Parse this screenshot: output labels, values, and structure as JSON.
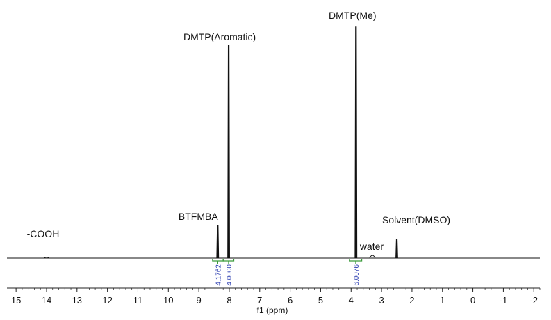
{
  "chart_data": {
    "type": "line",
    "title": "",
    "xlabel": "f1 (ppm)",
    "ylabel": "",
    "xlim": [
      15.3,
      -2.2
    ],
    "x_reversed": true,
    "ticks": [
      "15",
      "14",
      "13",
      "12",
      "11",
      "10",
      "9",
      "8",
      "7",
      "6",
      "5",
      "4",
      "3",
      "2",
      "1",
      "0",
      "-1",
      "-2"
    ],
    "tick_values": [
      15,
      14,
      13,
      12,
      11,
      10,
      9,
      8,
      7,
      6,
      5,
      4,
      3,
      2,
      1,
      0,
      -1,
      -2
    ],
    "peaks": [
      {
        "shift": 14.0,
        "height": 0.004,
        "label": "-COOH"
      },
      {
        "shift": 8.38,
        "height": 0.14,
        "label": "BTFMBA"
      },
      {
        "shift": 8.02,
        "height": 0.92,
        "label": "DMTP(Aromatic)"
      },
      {
        "shift": 3.84,
        "height": 1.0,
        "label": "DMTP(Me)"
      },
      {
        "shift": 3.3,
        "height": 0.012,
        "label": "water"
      },
      {
        "shift": 2.5,
        "height": 0.08,
        "label": "Solvent(DMSO)"
      }
    ],
    "integrals": [
      {
        "from": 8.55,
        "to": 8.2,
        "value": "4.1762"
      },
      {
        "from": 8.2,
        "to": 7.85,
        "value": "4.0000"
      },
      {
        "from": 4.05,
        "to": 3.65,
        "value": "6.0076"
      }
    ],
    "colors": {
      "spectrum": "#111111",
      "integral_bracket": "#3a9a3a",
      "integral_text": "#2a3cb0"
    }
  }
}
